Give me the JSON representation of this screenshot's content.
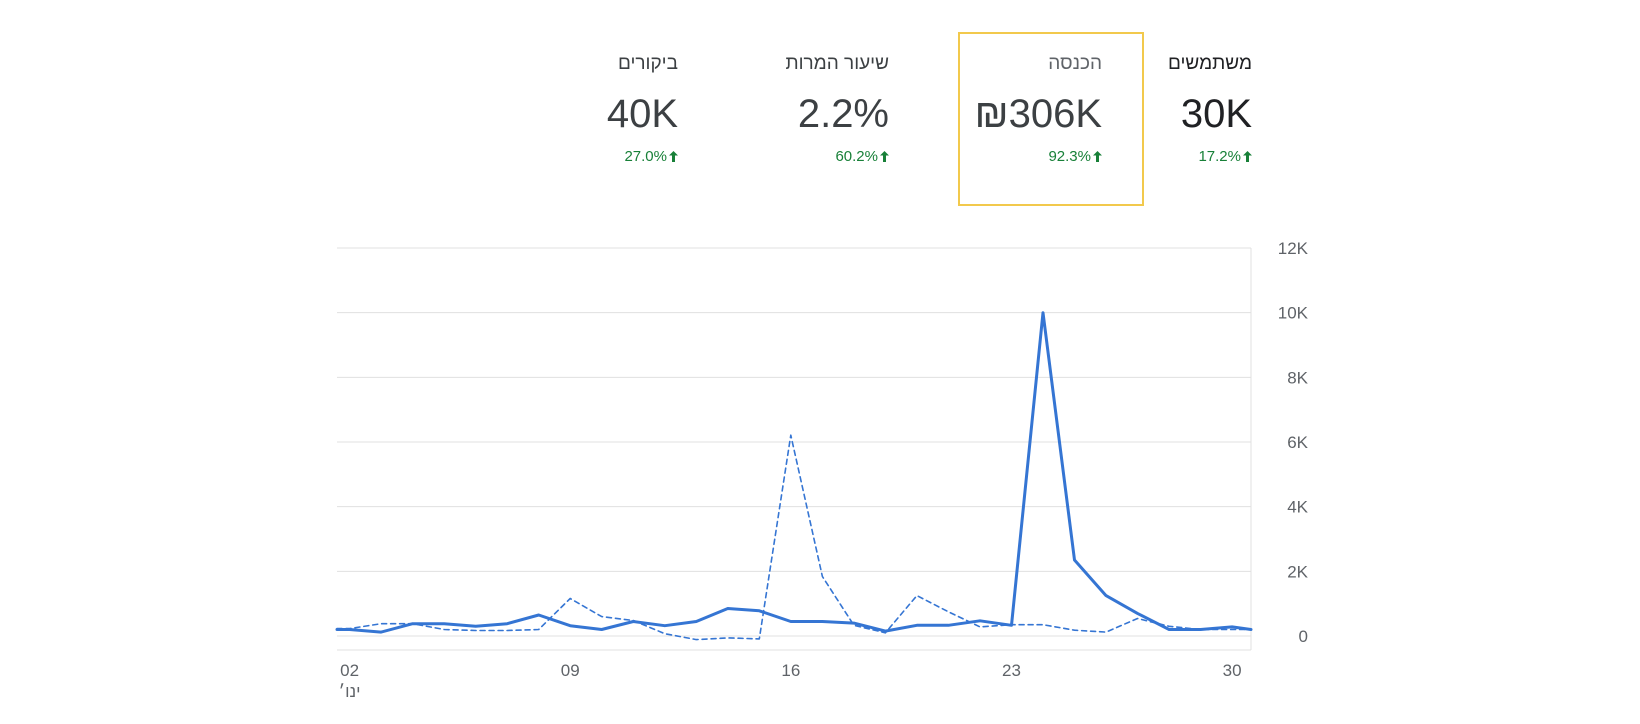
{
  "metrics": [
    {
      "label": "משתמשים",
      "value": "30K",
      "change": "17.2%"
    },
    {
      "label": "הכנסה",
      "value": "₪306K",
      "change": "92.3%"
    },
    {
      "label": "שיעור המרות",
      "value": "2.2%",
      "change": "60.2%"
    },
    {
      "label": "ביקורים",
      "value": "40K",
      "change": "27.0%"
    }
  ],
  "colors": {
    "accent": "#1a73e8",
    "line": "#3575d3",
    "positive": "#188038",
    "highlight": "#f2c94c",
    "grid": "#e0e0e0"
  },
  "chart_data": {
    "type": "line",
    "y_ticks": [
      "12K",
      "10K",
      "8K",
      "6K",
      "4K",
      "2K",
      "0"
    ],
    "y_tick_values": [
      12000,
      10000,
      8000,
      6000,
      4000,
      2000,
      0
    ],
    "ylim": [
      0,
      12000
    ],
    "x_tick_labels": [
      "02",
      "09",
      "16",
      "23",
      "30"
    ],
    "x_tick_days": [
      2,
      9,
      16,
      23,
      30
    ],
    "x_month_label": "ינו׳",
    "xlim": [
      1.6,
      30.6
    ],
    "grid": true,
    "x": [
      1.6,
      2,
      3,
      4,
      5,
      6,
      7,
      8,
      9,
      10,
      11,
      12,
      13,
      14,
      15,
      16,
      17,
      18,
      19,
      20,
      21,
      22,
      23,
      24,
      25,
      26,
      27,
      28,
      29,
      30,
      30.6
    ],
    "series": [
      {
        "style": "solid",
        "values": [
          200,
          200,
          120,
          380,
          380,
          300,
          380,
          650,
          320,
          200,
          450,
          320,
          450,
          850,
          780,
          450,
          450,
          400,
          150,
          330,
          330,
          470,
          330,
          10000,
          2350,
          1250,
          700,
          200,
          200,
          280,
          200
        ]
      },
      {
        "style": "dashed",
        "values": [
          230,
          230,
          380,
          380,
          200,
          170,
          170,
          200,
          1160,
          600,
          480,
          70,
          -110,
          -60,
          -90,
          6210,
          1840,
          330,
          100,
          1250,
          750,
          280,
          350,
          350,
          180,
          120,
          540,
          300,
          200,
          200,
          200
        ]
      }
    ]
  }
}
